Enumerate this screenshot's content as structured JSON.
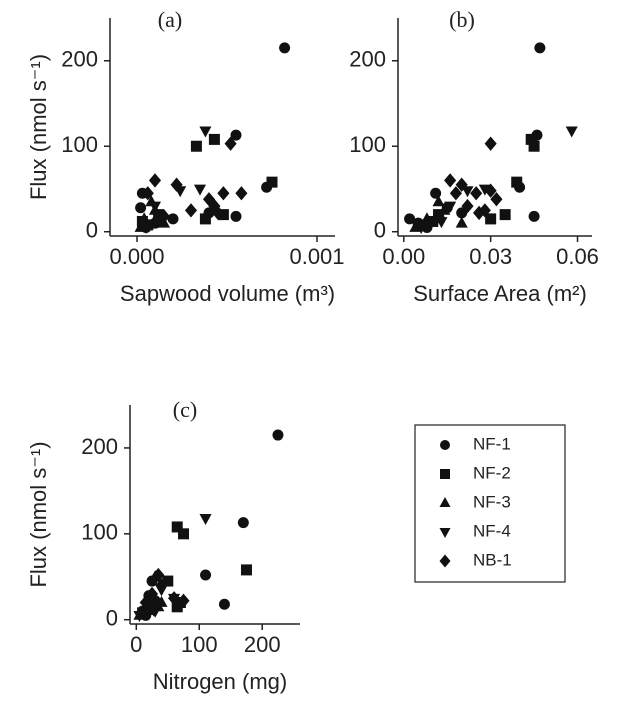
{
  "chart_data": [
    {
      "type": "scatter",
      "title": "(a)",
      "xlabel": "Sapwood volume (m³)",
      "ylabel": "Flux (nmol s⁻¹)",
      "xlim": [
        -0.00015,
        0.0011
      ],
      "ylim": [
        -5,
        250
      ],
      "xticks": [
        {
          "value": 0,
          "label": "0.000"
        },
        {
          "value": 0.001,
          "label": "0.001"
        }
      ],
      "yticks": [
        0,
        100,
        200
      ],
      "series": [
        {
          "name": "NF-1",
          "marker": "circle",
          "color": "#111111",
          "x": [
            0.00082,
            0.00055,
            0.00072,
            0.00055,
            3e-05,
            0.0001,
            5e-05,
            0.0004,
            0.0002,
            2e-05
          ],
          "y": [
            215,
            113,
            52,
            18,
            45,
            10,
            5,
            22,
            15,
            28
          ]
        },
        {
          "name": "NF-2",
          "marker": "square",
          "color": "#111111",
          "x": [
            0.00033,
            0.00043,
            0.00075,
            0.00048,
            0.00038,
            6e-05,
            0.00012,
            3e-05
          ],
          "y": [
            100,
            108,
            58,
            20,
            15,
            8,
            20,
            12
          ]
        },
        {
          "name": "NF-3",
          "marker": "triangle-up",
          "color": "#111111",
          "x": [
            4e-05,
            0.0001,
            0.00015,
            2e-05,
            8e-05
          ],
          "y": [
            15,
            25,
            10,
            5,
            35
          ]
        },
        {
          "name": "NF-4",
          "marker": "triangle-down",
          "color": "#111111",
          "x": [
            0.00038,
            0.00035,
            0.00024,
            5e-05,
            0.00012,
            0.0001
          ],
          "y": [
            118,
            50,
            48,
            5,
            12,
            30
          ]
        },
        {
          "name": "NB-1",
          "marker": "diamond",
          "color": "#111111",
          "x": [
            0.00052,
            0.00022,
            0.0001,
            0.0004,
            0.00048,
            0.00058,
            0.00045,
            0.0003,
            0.00015,
            6e-05,
            0.00043
          ],
          "y": [
            103,
            55,
            60,
            38,
            45,
            45,
            22,
            25,
            18,
            45,
            30
          ]
        }
      ]
    },
    {
      "type": "scatter",
      "title": "(b)",
      "xlabel": "Surface Area (m²)",
      "xlim": [
        -0.002,
        0.065
      ],
      "ylim": [
        -5,
        250
      ],
      "xticks": [
        {
          "value": 0,
          "label": "0.00"
        },
        {
          "value": 0.03,
          "label": "0.03"
        },
        {
          "value": 0.06,
          "label": "0.06"
        }
      ],
      "yticks": [
        0,
        100,
        200
      ],
      "series": [
        {
          "name": "NF-1",
          "marker": "circle",
          "color": "#111111",
          "x": [
            0.047,
            0.046,
            0.04,
            0.045,
            0.011,
            0.005,
            0.02,
            0.015,
            0.008,
            0.002
          ],
          "y": [
            215,
            113,
            52,
            18,
            45,
            10,
            22,
            28,
            5,
            15
          ]
        },
        {
          "name": "NF-2",
          "marker": "square",
          "color": "#111111",
          "x": [
            0.044,
            0.045,
            0.039,
            0.035,
            0.03,
            0.012,
            0.005,
            0.01
          ],
          "y": [
            108,
            100,
            58,
            20,
            15,
            20,
            8,
            12
          ]
        },
        {
          "name": "NF-3",
          "marker": "triangle-up",
          "color": "#111111",
          "x": [
            0.008,
            0.014,
            0.02,
            0.004,
            0.012
          ],
          "y": [
            15,
            25,
            10,
            5,
            35
          ]
        },
        {
          "name": "NF-4",
          "marker": "triangle-down",
          "color": "#111111",
          "x": [
            0.058,
            0.028,
            0.022,
            0.006,
            0.013,
            0.016
          ],
          "y": [
            118,
            50,
            48,
            5,
            12,
            30
          ]
        },
        {
          "name": "NB-1",
          "marker": "diamond",
          "color": "#111111",
          "x": [
            0.03,
            0.016,
            0.02,
            0.025,
            0.03,
            0.032,
            0.022,
            0.028,
            0.012,
            0.018,
            0.026
          ],
          "y": [
            103,
            60,
            55,
            45,
            48,
            38,
            30,
            25,
            18,
            45,
            22
          ]
        }
      ]
    },
    {
      "type": "scatter",
      "title": "(c)",
      "xlabel": "Nitrogen (mg)",
      "ylabel": "Flux (nmol s⁻¹)",
      "xlim": [
        -10,
        260
      ],
      "ylim": [
        -5,
        250
      ],
      "xticks": [
        0,
        100,
        200
      ],
      "yticks": [
        0,
        100,
        200
      ],
      "legend": "right",
      "series": [
        {
          "name": "NF-1",
          "marker": "circle",
          "color": "#111111",
          "x": [
            225,
            170,
            110,
            140,
            20,
            10,
            30,
            15,
            25
          ],
          "y": [
            215,
            113,
            52,
            18,
            28,
            10,
            22,
            5,
            45
          ]
        },
        {
          "name": "NF-2",
          "marker": "square",
          "color": "#111111",
          "x": [
            65,
            75,
            175,
            70,
            65,
            50,
            20,
            10
          ],
          "y": [
            108,
            100,
            58,
            20,
            15,
            45,
            12,
            8
          ]
        },
        {
          "name": "NF-3",
          "marker": "triangle-up",
          "color": "#111111",
          "x": [
            35,
            30,
            20,
            5,
            40
          ],
          "y": [
            15,
            50,
            25,
            5,
            20
          ]
        },
        {
          "name": "NF-4",
          "marker": "triangle-down",
          "color": "#111111",
          "x": [
            110,
            40,
            20,
            5,
            60,
            30
          ],
          "y": [
            118,
            35,
            15,
            5,
            25,
            10
          ]
        },
        {
          "name": "NB-1",
          "marker": "diamond",
          "color": "#111111",
          "x": [
            35,
            75,
            60,
            25,
            15,
            40,
            28
          ],
          "y": [
            52,
            22,
            25,
            30,
            20,
            40,
            12
          ]
        }
      ]
    }
  ]
}
